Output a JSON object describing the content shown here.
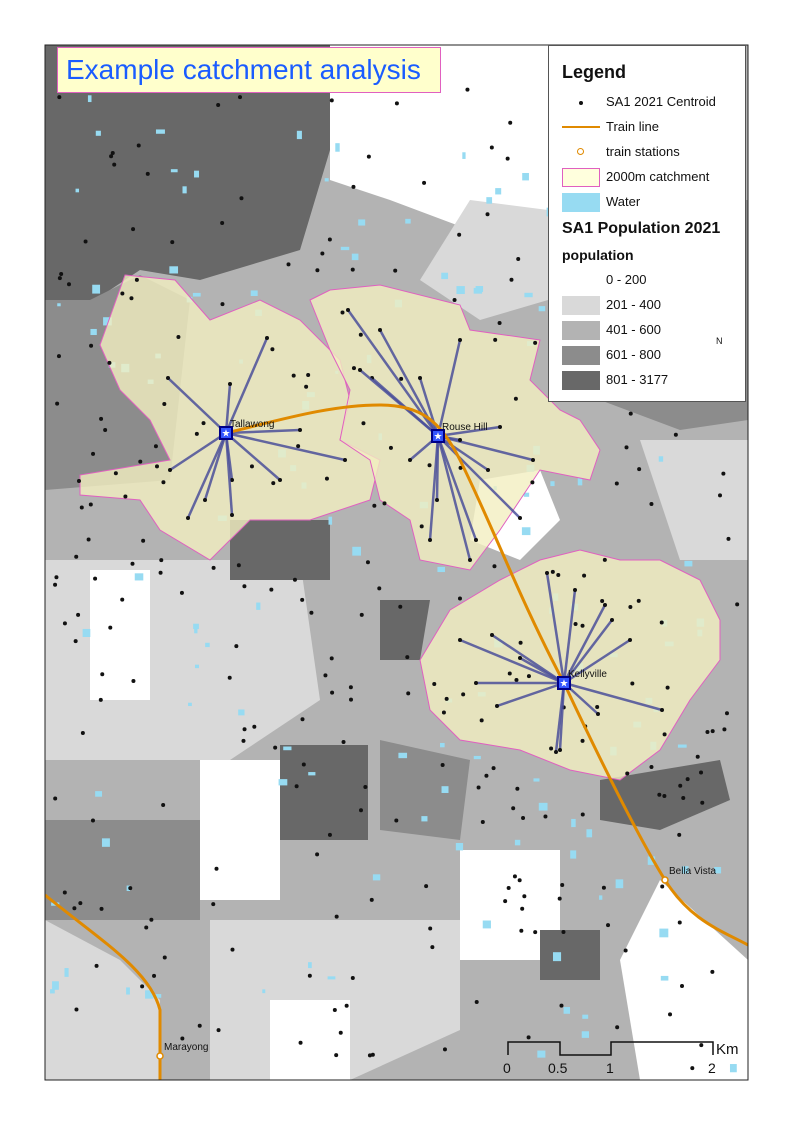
{
  "title": "Example catchment analysis",
  "legend": {
    "heading": "Legend",
    "items": [
      {
        "label": "SA1 2021 Centroid",
        "icon": "dot-icon"
      },
      {
        "label": "Train line",
        "color": "#e08a00"
      },
      {
        "label": "train stations",
        "icon": "circle-icon",
        "color": "#e08a00"
      },
      {
        "label": "2000m catchment",
        "fill": "#ffffdd",
        "stroke": "#e060c0"
      },
      {
        "label": "Water",
        "fill": "#97dbf2"
      }
    ],
    "layer_title": "SA1 Population 2021",
    "field_title": "population",
    "classes": [
      {
        "label": "0 - 200",
        "color": "#ffffff"
      },
      {
        "label": "201 - 400",
        "color": "#d9d9d9"
      },
      {
        "label": "401 - 600",
        "color": "#b3b3b3"
      },
      {
        "label": "601 - 800",
        "color": "#8c8c8c"
      },
      {
        "label": "801 - 3177",
        "color": "#686868"
      }
    ]
  },
  "north_arrow": {
    "label": "N"
  },
  "stations": [
    {
      "name": "Tallawong",
      "catchment": true
    },
    {
      "name": "Rouse Hill",
      "catchment": true
    },
    {
      "name": "Kellyville",
      "catchment": true
    },
    {
      "name": "Bella Vista",
      "catchment": false
    },
    {
      "name": "Marayong",
      "catchment": false
    }
  ],
  "scale_bar": {
    "unit": "Km",
    "ticks": [
      "0",
      "0.5",
      "1",
      "2"
    ]
  },
  "colors": {
    "spoke": "#4a4f9a",
    "station_marker": "#1a1acc",
    "train_line": "#e08a00",
    "catchment_stroke": "#e060c0"
  }
}
